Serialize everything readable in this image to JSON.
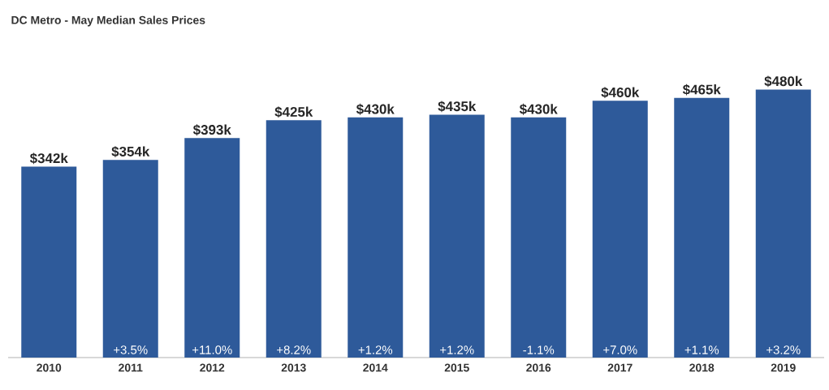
{
  "chart_data": {
    "type": "bar",
    "title": "DC Metro - May Median Sales Prices",
    "categories": [
      "2010",
      "2011",
      "2012",
      "2013",
      "2014",
      "2015",
      "2016",
      "2017",
      "2018",
      "2019"
    ],
    "values": [
      342,
      354,
      393,
      425,
      430,
      435,
      430,
      460,
      465,
      480
    ],
    "value_labels": [
      "$342k",
      "$354k",
      "$393k",
      "$425k",
      "$430k",
      "$435k",
      "$430k",
      "$460k",
      "$465k",
      "$480k"
    ],
    "color": "#2e5a9a",
    "annotations": [
      "+3.5%",
      "+11.0%",
      "+8.2%",
      "+1.2%",
      "+1.2%",
      "-1.1%",
      "+7.0%",
      "+1.1%",
      "+3.2%"
    ]
  }
}
